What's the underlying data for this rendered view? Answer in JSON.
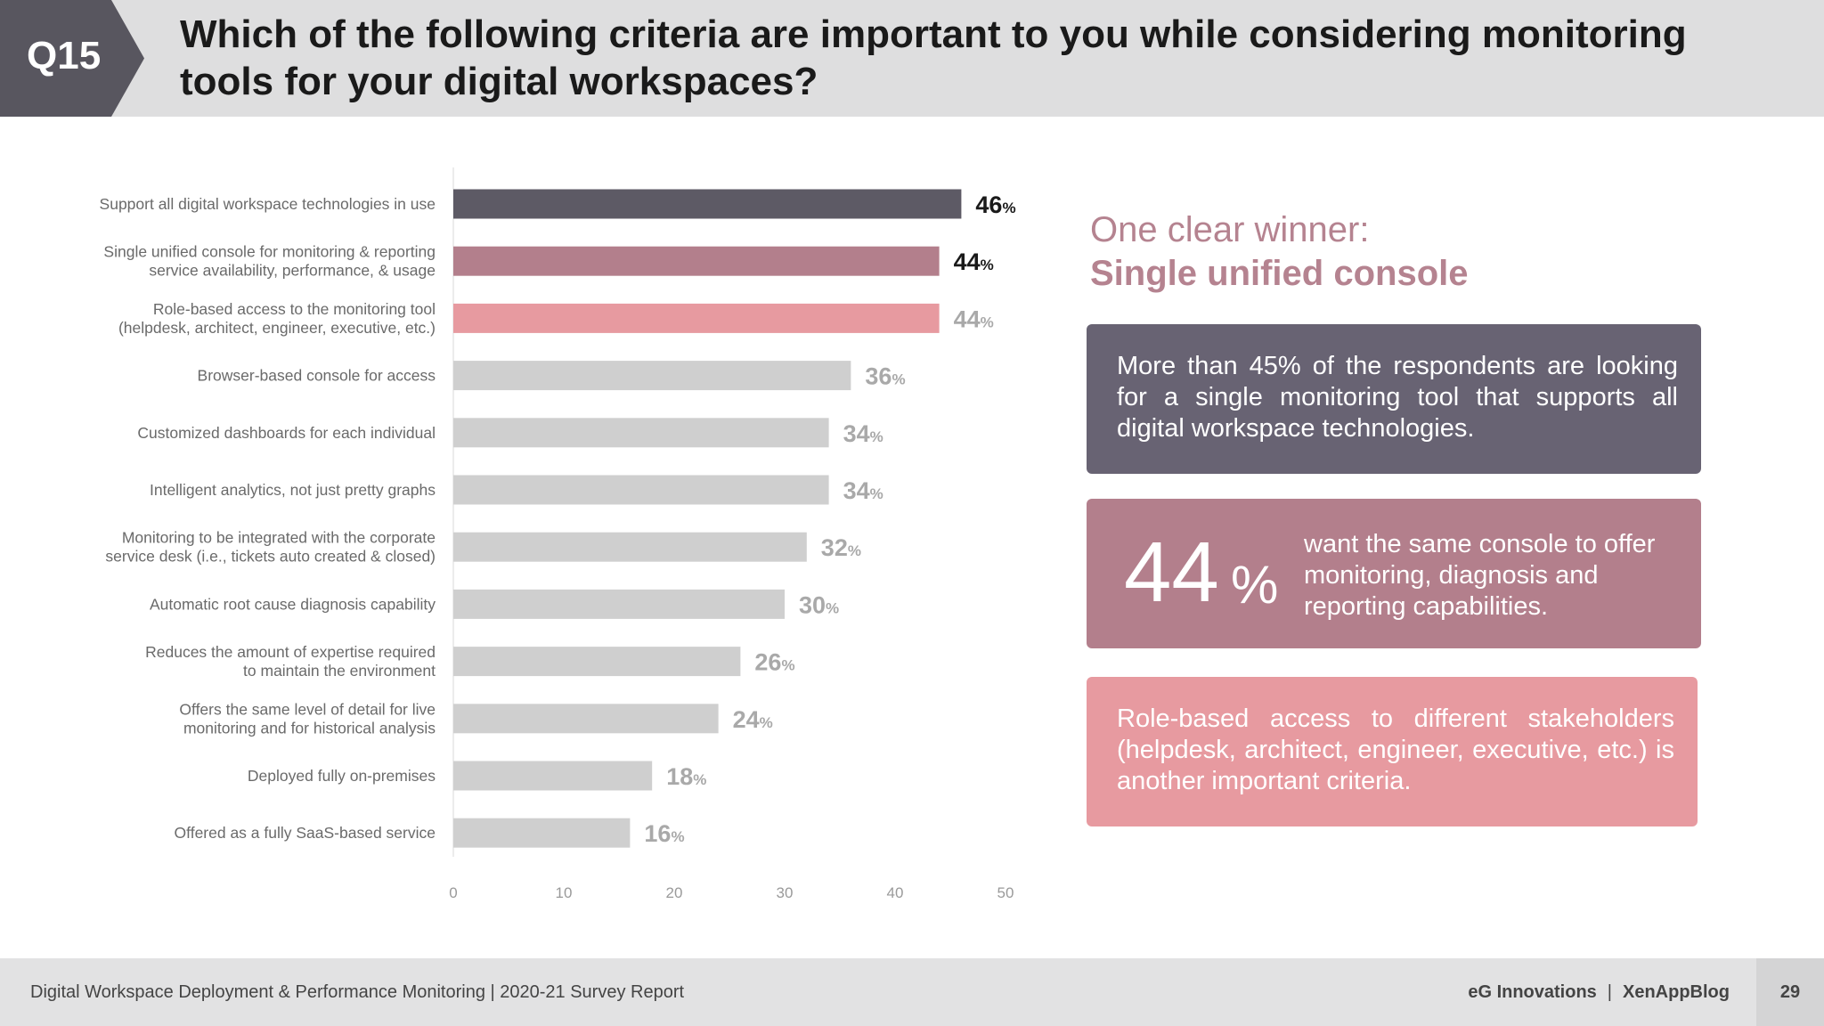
{
  "header": {
    "badge": "Q15",
    "title": "Which of the following criteria are important to you while considering monitoring tools for your digital workspaces?"
  },
  "colors": {
    "header_bg": "#dededf",
    "badge_bg": "#58565f",
    "bar_top": "#5d5a65",
    "bar_second": "#b37f8c",
    "bar_third": "#e79aa0",
    "bar_default": "#cfcfcf"
  },
  "chart_data": {
    "type": "bar",
    "orientation": "horizontal",
    "categories": [
      [
        "Support all digital workspace technologies in use"
      ],
      [
        "Single unified console for monitoring & reporting",
        "service availability, performance, & usage"
      ],
      [
        "Role-based access to the monitoring tool",
        "(helpdesk, architect, engineer, executive, etc.)"
      ],
      [
        "Browser-based console for access"
      ],
      [
        "Customized dashboards for each individual"
      ],
      [
        "Intelligent analytics, not just pretty graphs"
      ],
      [
        "Monitoring to be integrated with the corporate",
        "service desk (i.e., tickets auto created & closed)"
      ],
      [
        "Automatic root cause diagnosis capability"
      ],
      [
        "Reduces the amount of expertise required",
        "to maintain the environment"
      ],
      [
        "Offers the same level of detail for live",
        "monitoring and for historical analysis"
      ],
      [
        "Deployed fully on-premises"
      ],
      [
        "Offered as a fully SaaS-based service"
      ]
    ],
    "values": [
      46,
      44,
      44,
      36,
      34,
      34,
      32,
      30,
      26,
      24,
      18,
      16
    ],
    "value_suffix": "%",
    "bar_colors": [
      "#5d5a65",
      "#b37f8c",
      "#e79aa0",
      "#cfcfcf",
      "#cfcfcf",
      "#cfcfcf",
      "#cfcfcf",
      "#cfcfcf",
      "#cfcfcf",
      "#cfcfcf",
      "#cfcfcf",
      "#cfcfcf"
    ],
    "label_colors": [
      "#1a1a1a",
      "#1a1a1a",
      "#a9a9a9",
      "#a9a9a9",
      "#a9a9a9",
      "#a9a9a9",
      "#a9a9a9",
      "#a9a9a9",
      "#a9a9a9",
      "#a9a9a9",
      "#a9a9a9",
      "#a9a9a9"
    ],
    "xlim": [
      0,
      50
    ],
    "xticks": [
      0,
      10,
      20,
      30,
      40,
      50
    ],
    "grid": false,
    "title": "",
    "xlabel": "",
    "ylabel": ""
  },
  "panel": {
    "intro": "One clear winner:",
    "highlight": "Single unified console",
    "box1_text": "More than 45% of the respondents are looking for a single monitoring tool that supports all digital workspace technologies.",
    "box2_number": "44",
    "box2_percent": "%",
    "box2_text": "want the same console to offer monitoring, diagnosis and reporting capabilities.",
    "box3_text": "Role-based access to different stakeholders (helpdesk, architect, engineer, executive, etc.) is another important criteria."
  },
  "footer": {
    "report": "Digital Workspace Deployment & Performance Monitoring | 2020-21 Survey Report",
    "brand1": "eG Innovations",
    "separator": "|",
    "brand2": "XenAppBlog",
    "page": "29"
  }
}
